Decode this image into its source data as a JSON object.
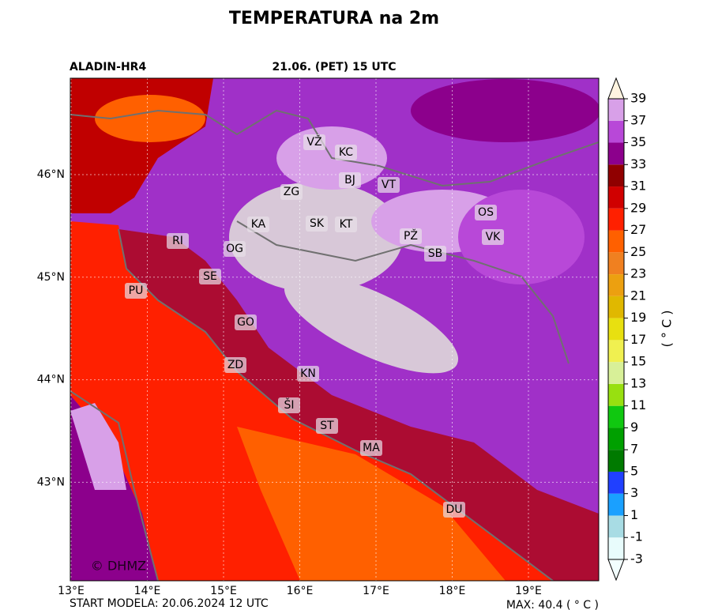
{
  "header": {
    "title": "TEMPERATURA na 2m",
    "model": "ALADIN-HR4",
    "valid_time": "21.06. (PET) 15 UTC"
  },
  "map": {
    "lon_ticks": [
      {
        "value": 13,
        "label": "13°E"
      },
      {
        "value": 14,
        "label": "14°E"
      },
      {
        "value": 15,
        "label": "15°E"
      },
      {
        "value": 16,
        "label": "16°E"
      },
      {
        "value": 17,
        "label": "17°E"
      },
      {
        "value": 18,
        "label": "18°E"
      },
      {
        "value": 19,
        "label": "19°E"
      }
    ],
    "lat_ticks": [
      {
        "value": 46,
        "label": "46°N"
      },
      {
        "value": 45,
        "label": "45°N"
      },
      {
        "value": 44,
        "label": "44°N"
      },
      {
        "value": 43,
        "label": "43°N"
      }
    ],
    "cities": [
      "VŽ",
      "KC",
      "BJ",
      "VT",
      "ZG",
      "OS",
      "KA",
      "SK",
      "KT",
      "PŽ",
      "VK",
      "RI",
      "OG",
      "SB",
      "SE",
      "PU",
      "GO",
      "ZD",
      "KN",
      "ŠI",
      "ST",
      "MA",
      "DU"
    ],
    "watermark": "© DHMZ"
  },
  "colorbar": {
    "label": "( ° C )",
    "ticks": [
      -3,
      -1,
      1,
      3,
      5,
      7,
      9,
      11,
      13,
      15,
      17,
      19,
      21,
      23,
      25,
      27,
      29,
      31,
      33,
      35,
      37,
      39
    ],
    "colors": [
      "#e8fcfc",
      "#a8dce4",
      "#1aa0ff",
      "#2040ff",
      "#007a00",
      "#00a000",
      "#10c810",
      "#98e010",
      "#d8f098",
      "#f0f050",
      "#e8e010",
      "#e0b800",
      "#eca010",
      "#f08020",
      "#ff6000",
      "#ff2000",
      "#d00000",
      "#900000",
      "#8c008c",
      "#b848d8",
      "#d8a0e8"
    ],
    "under_color": "#f2fefe",
    "over_color": "#fff4e0"
  },
  "footer": {
    "start": "START MODELA: 20.06.2024 12 UTC",
    "max": "MAX: 40.4 ( ° C )"
  }
}
